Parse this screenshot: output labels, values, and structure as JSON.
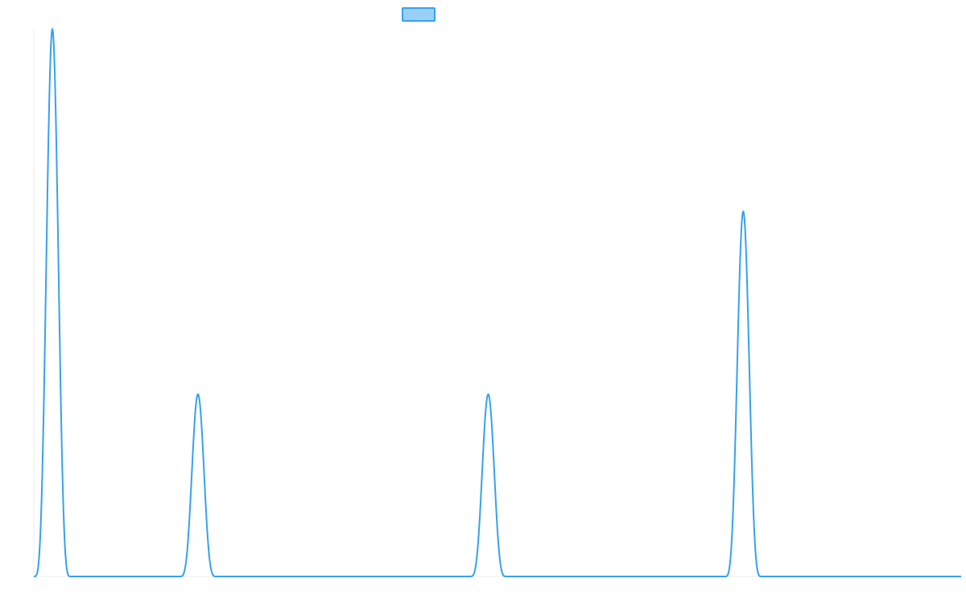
{
  "chart_data": {
    "type": "line",
    "title": "",
    "xlabel": "",
    "ylabel": "",
    "grid": false,
    "legend_position": "top-center",
    "xlim": [
      0,
      1
    ],
    "ylim": [
      0,
      1
    ],
    "series": [
      {
        "color": "#36a2eb",
        "fill_color": "#9ad0f5",
        "peaks": [
          {
            "x": 0.02,
            "y": 1.0,
            "start": 0.0,
            "end": 0.04
          },
          {
            "x": 0.177,
            "y": 0.333,
            "start": 0.157,
            "end": 0.196
          },
          {
            "x": 0.49,
            "y": 0.333,
            "start": 0.47,
            "end": 0.509
          },
          {
            "x": 0.765,
            "y": 0.667,
            "start": 0.745,
            "end": 0.784
          }
        ]
      }
    ]
  }
}
